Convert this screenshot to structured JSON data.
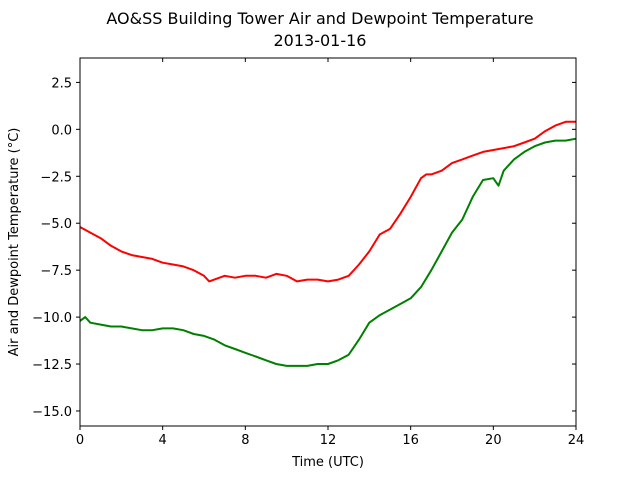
{
  "chart_data": {
    "type": "line",
    "title": "AO&SS Building Tower Air and Dewpoint Temperature",
    "subtitle": "2013-01-16",
    "xlabel": "Time (UTC)",
    "ylabel": "Air and Dewpoint Temperature (°C)",
    "xlim": [
      0,
      24
    ],
    "ylim": [
      -15.8,
      3.8
    ],
    "xticks": [
      0,
      4,
      8,
      12,
      16,
      20,
      24
    ],
    "xtick_labels": [
      "0",
      "4",
      "8",
      "12",
      "16",
      "20",
      "24"
    ],
    "yticks": [
      2.5,
      0.0,
      -2.5,
      -5.0,
      -7.5,
      -10.0,
      -12.5,
      -15.0
    ],
    "ytick_labels": [
      "2.5",
      "0.0",
      "−2.5",
      "−5.0",
      "−7.5",
      "−10.0",
      "−12.5",
      "−15.0"
    ],
    "grid": false,
    "series": [
      {
        "color": "#ff0000",
        "x": [
          0,
          0.5,
          1,
          1.5,
          2,
          2.5,
          3,
          3.5,
          4,
          4.5,
          5,
          5.5,
          6,
          6.25,
          6.5,
          7,
          7.5,
          8,
          8.5,
          9,
          9.5,
          10,
          10.5,
          11,
          11.5,
          12,
          12.5,
          13,
          13.5,
          14,
          14.5,
          15,
          15.5,
          16,
          16.5,
          16.75,
          17,
          17.5,
          18,
          18.5,
          19,
          19.5,
          20,
          20.5,
          21,
          21.5,
          22,
          22.5,
          23,
          23.5,
          24
        ],
        "y": [
          -5.2,
          -5.5,
          -5.8,
          -6.2,
          -6.5,
          -6.7,
          -6.8,
          -6.9,
          -7.1,
          -7.2,
          -7.3,
          -7.5,
          -7.8,
          -8.1,
          -8.0,
          -7.8,
          -7.9,
          -7.8,
          -7.8,
          -7.9,
          -7.7,
          -7.8,
          -8.1,
          -8.0,
          -8.0,
          -8.1,
          -8.0,
          -7.8,
          -7.2,
          -6.5,
          -5.6,
          -5.3,
          -4.5,
          -3.6,
          -2.6,
          -2.4,
          -2.4,
          -2.2,
          -1.8,
          -1.6,
          -1.4,
          -1.2,
          -1.1,
          -1.0,
          -0.9,
          -0.7,
          -0.5,
          -0.1,
          0.2,
          0.4,
          0.4
        ]
      },
      {
        "color": "#008000",
        "x": [
          0,
          0.25,
          0.5,
          1,
          1.5,
          2,
          2.5,
          3,
          3.5,
          4,
          4.5,
          5,
          5.5,
          6,
          6.5,
          7,
          7.5,
          8,
          8.5,
          9,
          9.5,
          10,
          10.5,
          11,
          11.5,
          12,
          12.5,
          13,
          13.5,
          14,
          14.5,
          15,
          15.5,
          16,
          16.5,
          17,
          17.5,
          18,
          18.5,
          19,
          19.5,
          20,
          20.25,
          20.5,
          21,
          21.5,
          22,
          22.5,
          23,
          23.5,
          24
        ],
        "y": [
          -10.2,
          -10.0,
          -10.3,
          -10.4,
          -10.5,
          -10.5,
          -10.6,
          -10.7,
          -10.7,
          -10.6,
          -10.6,
          -10.7,
          -10.9,
          -11.0,
          -11.2,
          -11.5,
          -11.7,
          -11.9,
          -12.1,
          -12.3,
          -12.5,
          -12.6,
          -12.6,
          -12.6,
          -12.5,
          -12.5,
          -12.3,
          -12.0,
          -11.2,
          -10.3,
          -9.9,
          -9.6,
          -9.3,
          -9.0,
          -8.4,
          -7.5,
          -6.5,
          -5.5,
          -4.8,
          -3.6,
          -2.7,
          -2.6,
          -3.0,
          -2.2,
          -1.6,
          -1.2,
          -0.9,
          -0.7,
          -0.6,
          -0.6,
          -0.5
        ]
      }
    ]
  }
}
